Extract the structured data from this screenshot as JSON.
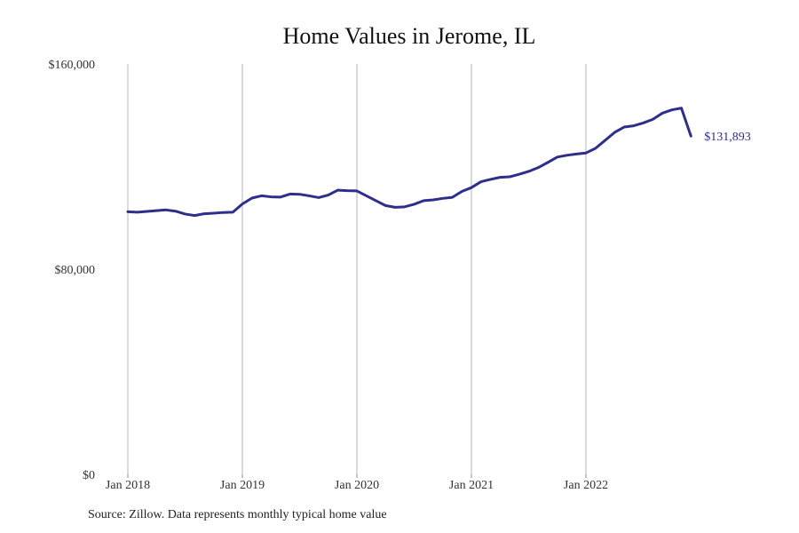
{
  "chart_data": {
    "type": "line",
    "title": "Home Values in Jerome, IL",
    "xlabel": "",
    "ylabel": "",
    "ylim": [
      0,
      160000
    ],
    "y_ticks": [
      {
        "value": 0,
        "label": "$0"
      },
      {
        "value": 80000,
        "label": "$80,000"
      },
      {
        "value": 160000,
        "label": "$160,000"
      }
    ],
    "x_ticks": [
      {
        "value": 0,
        "label": "Jan 2018"
      },
      {
        "value": 12,
        "label": "Jan 2019"
      },
      {
        "value": 24,
        "label": "Jan 2020"
      },
      {
        "value": 36,
        "label": "Jan 2021"
      },
      {
        "value": 48,
        "label": "Jan 2022"
      }
    ],
    "grid": "vertical",
    "line_color": "#2e2e8c",
    "series": [
      {
        "x": [
          "Jan 2018",
          "Feb 2018",
          "Mar 2018",
          "Apr 2018",
          "May 2018",
          "Jun 2018",
          "Jul 2018",
          "Aug 2018",
          "Sep 2018",
          "Oct 2018",
          "Nov 2018",
          "Dec 2018",
          "Jan 2019",
          "Feb 2019",
          "Mar 2019",
          "Apr 2019",
          "May 2019",
          "Jun 2019",
          "Jul 2019",
          "Aug 2019",
          "Sep 2019",
          "Oct 2019",
          "Nov 2019",
          "Dec 2019",
          "Jan 2020",
          "Feb 2020",
          "Mar 2020",
          "Apr 2020",
          "May 2020",
          "Jun 2020",
          "Jul 2020",
          "Aug 2020",
          "Sep 2020",
          "Oct 2020",
          "Nov 2020",
          "Dec 2020",
          "Jan 2021",
          "Feb 2021",
          "Mar 2021",
          "Apr 2021",
          "May 2021",
          "Jun 2021",
          "Jul 2021",
          "Aug 2021",
          "Sep 2021",
          "Oct 2021",
          "Nov 2021",
          "Dec 2021",
          "Jan 2022",
          "Feb 2022",
          "Mar 2022",
          "Apr 2022",
          "May 2022",
          "Jun 2022",
          "Jul 2022",
          "Aug 2022",
          "Sep 2022",
          "Oct 2022",
          "Nov 2022",
          "Dec 2022"
        ],
        "values": [
          102400,
          102200,
          102500,
          102800,
          103100,
          102600,
          101500,
          100900,
          101600,
          101800,
          102100,
          102200,
          105400,
          107700,
          108600,
          108200,
          108100,
          109300,
          109200,
          108600,
          107900,
          108900,
          110800,
          110600,
          110500,
          108600,
          106700,
          104800,
          104100,
          104300,
          105300,
          106700,
          107000,
          107600,
          108000,
          110300,
          111800,
          114100,
          115000,
          115800,
          116000,
          117000,
          118100,
          119600,
          121600,
          123700,
          124400,
          124900,
          125300,
          127100,
          130200,
          133300,
          135400,
          135900,
          137000,
          138400,
          140800,
          142100,
          142800,
          131893
        ]
      }
    ],
    "end_label": "$131,893"
  },
  "source_note": "Source: Zillow. Data represents monthly typical home value"
}
